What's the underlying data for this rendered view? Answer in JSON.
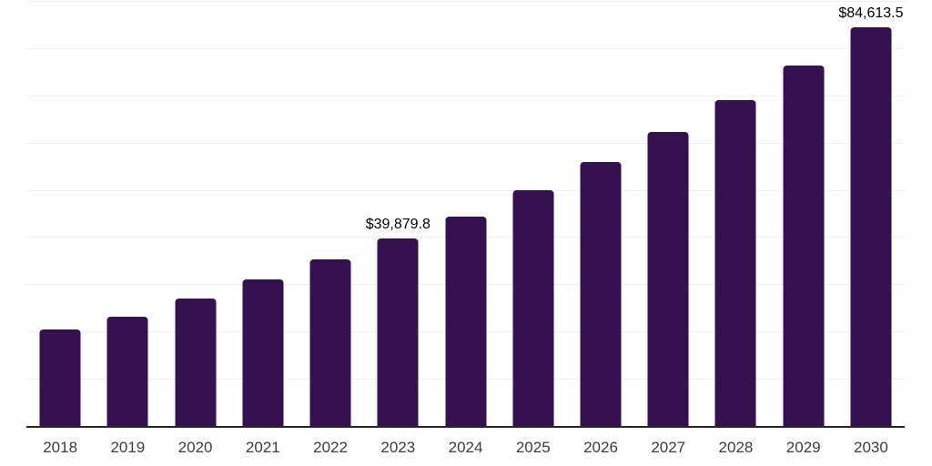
{
  "chart_data": {
    "type": "bar",
    "title": "",
    "xlabel": "",
    "ylabel": "",
    "categories": [
      "2018",
      "2019",
      "2020",
      "2021",
      "2022",
      "2023",
      "2024",
      "2025",
      "2026",
      "2027",
      "2028",
      "2029",
      "2030"
    ],
    "values": [
      20600,
      23300,
      27100,
      31300,
      35500,
      39879.8,
      44600,
      50100,
      56000,
      62500,
      69200,
      76500,
      84613.5
    ],
    "bar_labels": [
      "",
      "",
      "",
      "",
      "",
      "$39,879.8",
      "",
      "",
      "",
      "",
      "",
      "",
      "$84,613.5"
    ],
    "ylim": [
      0,
      90000
    ],
    "gridline_interval": 10000,
    "grid": "horizontal-only",
    "legend": "none",
    "y_tick_labels_shown": false,
    "colors": {
      "bar": "#351150",
      "gridline": "#f1f1f3",
      "axis_line": "#262626",
      "tick_label": "#3d3d3d",
      "value_label": "#000000",
      "background": "#ffffff"
    }
  }
}
